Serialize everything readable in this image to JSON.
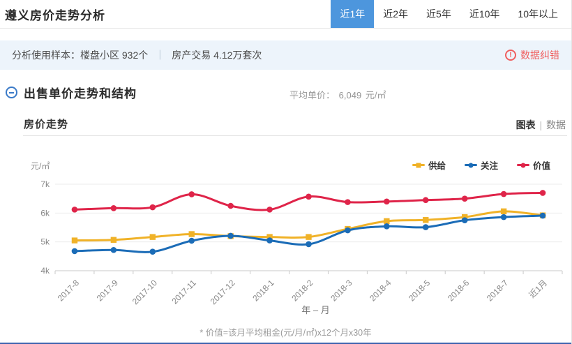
{
  "page": {
    "title": "遵义房价走势分析",
    "tabs": [
      {
        "label": "近1年",
        "active": true
      },
      {
        "label": "近2年",
        "active": false
      },
      {
        "label": "近5年",
        "active": false
      },
      {
        "label": "近10年",
        "active": false
      },
      {
        "label": "10年以上",
        "active": false
      }
    ],
    "info_bar": {
      "label": "分析使用样本：",
      "sample1": "楼盘小区 932个",
      "separator": "｜",
      "sample2": "房产交易 4.12万套次",
      "error_link": "数据纠错"
    },
    "section": {
      "title": "出售单价走势和结构",
      "avg_label": "平均单价：",
      "avg_value": "6,049",
      "avg_unit": "元/㎡"
    },
    "chart_header": {
      "title": "房价走势",
      "view_chart": "图表",
      "view_sep": "|",
      "view_data": "数据"
    },
    "footnote": "* 价值=该月平均租金(元/月/㎡)x12个月x30年"
  },
  "colors": {
    "active_tab": "#4d96dd",
    "info_bg": "#edf4fb",
    "error_red": "#f05f5f",
    "supply_yellow": "#f0b228",
    "attention_blue": "#1b6cb7",
    "value_red": "#df2449"
  },
  "chart_data": {
    "type": "line",
    "title": "房价走势",
    "y_axis_title": "元/㎡",
    "x_axis_title": "年 – 月",
    "categories": [
      "2017-8",
      "2017-9",
      "2017-10",
      "2017-11",
      "2017-12",
      "2018-1",
      "2018-2",
      "2018-3",
      "2018-4",
      "2018-5",
      "2018-6",
      "2018-7",
      "近1月"
    ],
    "series": [
      {
        "name": "供给",
        "color": "#f0b228",
        "marker": "square",
        "values": [
          5050,
          5070,
          5170,
          5270,
          5200,
          5170,
          5170,
          5450,
          5720,
          5760,
          5860,
          6060,
          5920
        ]
      },
      {
        "name": "关注",
        "color": "#1b6cb7",
        "marker": "circle",
        "values": [
          4680,
          4720,
          4660,
          5040,
          5210,
          5050,
          4920,
          5400,
          5540,
          5510,
          5750,
          5860,
          5910
        ]
      },
      {
        "name": "价值",
        "color": "#df2449",
        "marker": "circle",
        "values": [
          6120,
          6170,
          6200,
          6650,
          6250,
          6120,
          6570,
          6380,
          6400,
          6450,
          6500,
          6660,
          6700
        ]
      }
    ],
    "ylim": [
      4000,
      7000
    ],
    "y_tick_values": [
      4000,
      5000,
      6000,
      7000
    ],
    "y_tick_labels": [
      "4k",
      "5k",
      "6k",
      "7k"
    ],
    "grid": true,
    "smooth": true,
    "legend_position": "top-right"
  }
}
